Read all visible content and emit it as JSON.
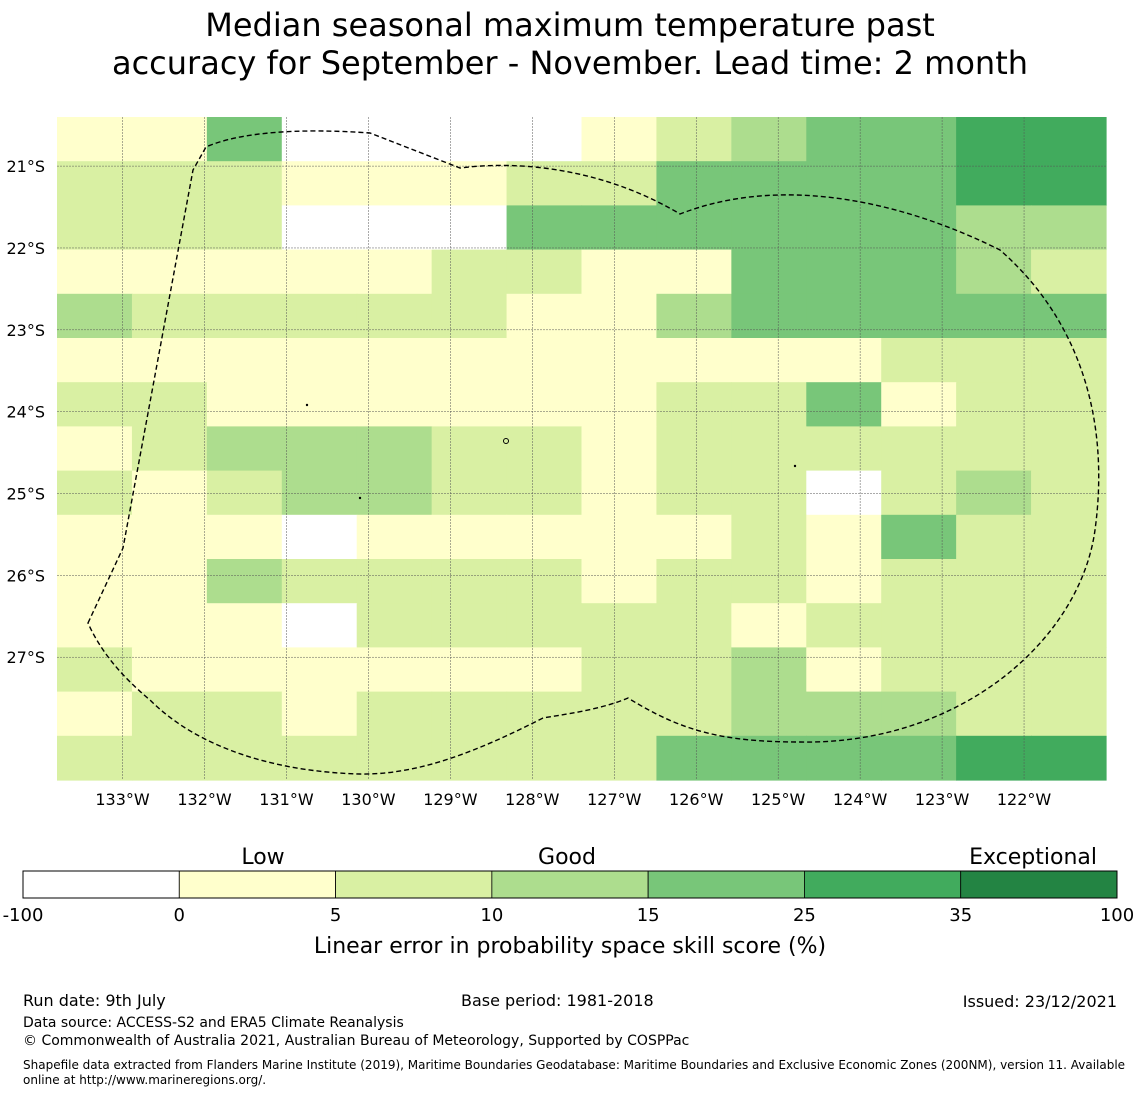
{
  "title": {
    "line1": "Median seasonal maximum temperature past",
    "line2": "accuracy for September - November. Lead time: 2 month"
  },
  "map": {
    "lat_labels": [
      "21°S",
      "22°S",
      "23°S",
      "24°S",
      "25°S",
      "26°S",
      "27°S"
    ],
    "lon_labels": [
      "133°W",
      "132°W",
      "131°W",
      "130°W",
      "129°W",
      "128°W",
      "127°W",
      "126°W",
      "125°W",
      "124°W",
      "123°W",
      "122°W"
    ],
    "lon_range": [
      -133.8,
      -121.0
    ],
    "lat_range": [
      -28.5,
      -20.4
    ],
    "cell_size_deg": 0.83,
    "grid_rows": [
      "11400001234455",
      "22211122444455",
      "22200044444433",
      "11111221144432",
      "32222211344444",
      "11111111111222",
      "22111111224122",
      "12333221222222",
      "21233221220232",
      "11101111121422",
      "11322221221222",
      "11102222212222",
      "21111112231222",
      "12212222233322",
      "22222222444455"
    ],
    "level_colors": [
      "#ffffff",
      "#ffffcc",
      "#d9f0a3",
      "#addd8e",
      "#78c679",
      "#41ab5d",
      "#238443"
    ]
  },
  "colorbar": {
    "category_labels": [
      "Low",
      "Good",
      "Exceptional"
    ],
    "tick_labels": [
      "-100",
      "0",
      "5",
      "10",
      "15",
      "25",
      "35",
      "100"
    ],
    "colors": [
      "#ffffff",
      "#ffffcc",
      "#d9f0a3",
      "#addd8e",
      "#78c679",
      "#41ab5d",
      "#238443"
    ],
    "title": "Linear error in probability space skill score (%)"
  },
  "footer": {
    "run_date": "Run date: 9th July",
    "base_period": "Base period: 1981-2018",
    "issued": "Issued: 23/12/2021",
    "data_source": "Data source: ACCESS-S2 and ERA5 Climate Reanalysis",
    "copyright": "© Commonwealth of Australia 2021, Australian Bureau of Meteorology, Supported by COSPPac",
    "shapefile": "Shapefile data extracted from Flanders Marine Institute (2019), Maritime Boundaries Geodatabase: Maritime Boundaries and Exclusive Economic Zones (200NM), version 11. Available online at http://www.marineregions.org/."
  }
}
